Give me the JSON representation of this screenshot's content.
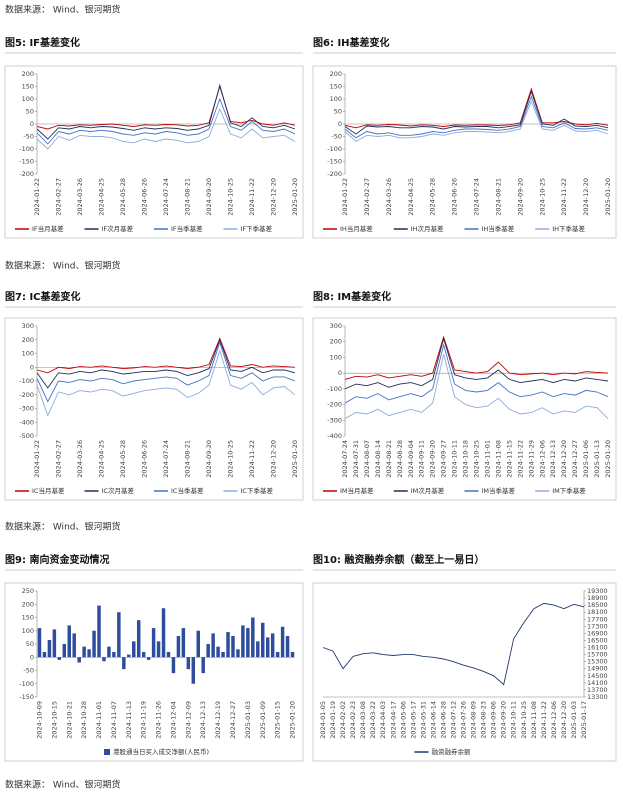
{
  "sources": [
    "数据来源： Wind、银河期货",
    "数据来源： Wind、银河期货",
    "数据来源： Wind、银河期货",
    "数据来源： Wind、银河期货"
  ],
  "chart_data": [
    {
      "type": "line",
      "title": "图5: IF基差变化",
      "categories": [
        "2024-01-22",
        null,
        "2024-02-27",
        null,
        "2024-03-26",
        null,
        "2024-04-25",
        null,
        "2024-05-28",
        null,
        "2024-06-26",
        null,
        "2024-07-24",
        null,
        "2024-08-21",
        null,
        "2024-09-20",
        null,
        "2024-10-25",
        null,
        "2024-11-22",
        null,
        "2024-12-20",
        null,
        "2025-01-20"
      ],
      "series": [
        {
          "name": "IF当月基差",
          "color": "#c00000",
          "values": [
            -10,
            -20,
            -5,
            -8,
            -3,
            -5,
            -2,
            0,
            -5,
            -10,
            -3,
            -5,
            -2,
            -3,
            -8,
            -5,
            5,
            150,
            10,
            5,
            15,
            0,
            -5,
            5,
            -5
          ]
        },
        {
          "name": "IF次月基差",
          "color": "#1f2d5a",
          "values": [
            -20,
            -60,
            -15,
            -20,
            -10,
            -15,
            -10,
            -12,
            -18,
            -25,
            -15,
            -20,
            -15,
            -18,
            -25,
            -20,
            -5,
            155,
            5,
            -10,
            25,
            -10,
            -15,
            -5,
            -20
          ]
        },
        {
          "name": "IF当季基差",
          "color": "#4472c4",
          "values": [
            -35,
            -80,
            -30,
            -40,
            -25,
            -30,
            -25,
            -30,
            -40,
            -45,
            -35,
            -40,
            -30,
            -35,
            -45,
            -40,
            -20,
            100,
            -10,
            -25,
            10,
            -25,
            -30,
            -20,
            -40
          ]
        },
        {
          "name": "IF下季基差",
          "color": "#8faadc",
          "values": [
            -60,
            -100,
            -50,
            -65,
            -45,
            -50,
            -50,
            -55,
            -70,
            -75,
            -60,
            -70,
            -60,
            -65,
            -75,
            -70,
            -50,
            60,
            -40,
            -55,
            -20,
            -55,
            -50,
            -45,
            -70
          ]
        }
      ],
      "ylim": [
        -200,
        200
      ],
      "yticks": [
        -200,
        -150,
        -100,
        -50,
        0,
        50,
        100,
        150,
        200
      ]
    },
    {
      "type": "line",
      "title": "图6: IH基差变化",
      "categories": [
        "2024-01-22",
        null,
        "2024-02-27",
        null,
        "2024-03-26",
        null,
        "2024-04-25",
        null,
        "2024-05-28",
        null,
        "2024-06-26",
        null,
        "2024-07-24",
        null,
        "2024-08-21",
        null,
        "2024-09-20",
        null,
        "2024-10-25",
        null,
        "2024-11-22",
        null,
        "2024-12-20",
        null,
        "2025-01-20"
      ],
      "series": [
        {
          "name": "IH当月基差",
          "color": "#c00000",
          "values": [
            -5,
            -15,
            -3,
            -5,
            -2,
            -4,
            -8,
            -3,
            -5,
            -10,
            -4,
            -5,
            -3,
            -4,
            -6,
            -3,
            5,
            140,
            5,
            5,
            10,
            0,
            -3,
            3,
            -5
          ]
        },
        {
          "name": "IH次月基差",
          "color": "#1f2d5a",
          "values": [
            -10,
            -40,
            -8,
            -12,
            -10,
            -15,
            -15,
            -10,
            -12,
            -20,
            -10,
            -12,
            -10,
            -10,
            -15,
            -10,
            -3,
            130,
            0,
            -5,
            20,
            -8,
            -10,
            -5,
            -15
          ]
        },
        {
          "name": "IH当季基差",
          "color": "#4472c4",
          "values": [
            -20,
            -55,
            -30,
            -40,
            -35,
            -45,
            -45,
            -40,
            -30,
            -35,
            -25,
            -20,
            -20,
            -22,
            -25,
            -20,
            -10,
            110,
            -10,
            -15,
            5,
            -18,
            -20,
            -15,
            -25
          ]
        },
        {
          "name": "IH下季基差",
          "color": "#8faadc",
          "values": [
            -30,
            -70,
            -45,
            -50,
            -45,
            -55,
            -55,
            -50,
            -40,
            -45,
            -35,
            -30,
            -30,
            -32,
            -35,
            -30,
            -20,
            90,
            -20,
            -25,
            -5,
            -28,
            -30,
            -25,
            -40
          ]
        }
      ],
      "ylim": [
        -200,
        200
      ],
      "yticks": [
        -200,
        -150,
        -100,
        -50,
        0,
        50,
        100,
        150,
        200
      ]
    },
    {
      "type": "line",
      "title": "图7: IC基差变化",
      "categories": [
        "2024-01-22",
        null,
        "2024-02-27",
        null,
        "2024-03-26",
        null,
        "2024-04-25",
        null,
        "2024-05-28",
        null,
        "2024-06-26",
        null,
        "2024-07-24",
        null,
        "2024-08-21",
        null,
        "2024-09-20",
        null,
        "2024-10-25",
        null,
        "2024-11-22",
        null,
        "2024-12-20",
        null,
        "2025-01-20"
      ],
      "series": [
        {
          "name": "IC当月基差",
          "color": "#c00000",
          "values": [
            -20,
            -40,
            0,
            -10,
            5,
            0,
            10,
            0,
            -10,
            -5,
            5,
            0,
            10,
            0,
            -10,
            0,
            20,
            210,
            10,
            5,
            20,
            0,
            10,
            5,
            0
          ]
        },
        {
          "name": "IC次月基差",
          "color": "#1f2d5a",
          "values": [
            -40,
            -150,
            -40,
            -50,
            -30,
            -40,
            -20,
            -30,
            -50,
            -40,
            -30,
            -30,
            -20,
            -30,
            -60,
            -40,
            -10,
            200,
            -20,
            -30,
            0,
            -40,
            -20,
            -20,
            -40
          ]
        },
        {
          "name": "IC当季基差",
          "color": "#4472c4",
          "values": [
            -80,
            -250,
            -100,
            -110,
            -90,
            -100,
            -80,
            -90,
            -120,
            -100,
            -90,
            -80,
            -70,
            -80,
            -130,
            -100,
            -60,
            180,
            -60,
            -80,
            -40,
            -100,
            -70,
            -70,
            -100
          ]
        },
        {
          "name": "IC下季基差",
          "color": "#8faadc",
          "values": [
            -130,
            -350,
            -180,
            -200,
            -170,
            -180,
            -160,
            -170,
            -210,
            -190,
            -170,
            -160,
            -150,
            -160,
            -220,
            -190,
            -130,
            120,
            -130,
            -160,
            -110,
            -200,
            -150,
            -140,
            -200
          ]
        }
      ],
      "ylim": [
        -500,
        300
      ],
      "yticks": [
        -500,
        -400,
        -300,
        -200,
        -100,
        0,
        100,
        200,
        300
      ]
    },
    {
      "type": "line",
      "title": "图8: IM基差变化",
      "categories": [
        "2024-07-24",
        "2024-07-31",
        "2024-08-07",
        "2024-08-14",
        "2024-08-21",
        "2024-08-28",
        "2024-09-04",
        "2024-09-11",
        "2024-09-20",
        "2024-09-27",
        "2024-10-11",
        "2024-10-18",
        "2024-10-25",
        "2024-11-01",
        "2024-11-08",
        "2024-11-15",
        "2024-11-22",
        "2024-11-29",
        "2024-12-06",
        "2024-12-13",
        "2024-12-20",
        "2024-12-27",
        "2025-01-06",
        "2025-01-13",
        "2025-01-20"
      ],
      "series": [
        {
          "name": "IM当月基差",
          "color": "#c00000",
          "values": [
            -40,
            -20,
            -25,
            -10,
            -30,
            -20,
            -10,
            -20,
            0,
            230,
            20,
            10,
            0,
            10,
            70,
            0,
            -10,
            -5,
            0,
            -10,
            0,
            -5,
            10,
            5,
            0
          ]
        },
        {
          "name": "IM次月基差",
          "color": "#1f2d5a",
          "values": [
            -100,
            -70,
            -80,
            -60,
            -90,
            -70,
            -60,
            -80,
            -40,
            220,
            -10,
            -30,
            -40,
            -30,
            20,
            -40,
            -60,
            -50,
            -40,
            -60,
            -40,
            -50,
            -30,
            -40,
            -50
          ]
        },
        {
          "name": "IM当季基差",
          "color": "#4472c4",
          "values": [
            -190,
            -150,
            -160,
            -130,
            -170,
            -150,
            -130,
            -150,
            -100,
            180,
            -70,
            -110,
            -120,
            -110,
            -60,
            -120,
            -150,
            -140,
            -120,
            -150,
            -130,
            -140,
            -110,
            -120,
            -150
          ]
        },
        {
          "name": "IM下季基差",
          "color": "#8faadc",
          "values": [
            -290,
            -250,
            -260,
            -230,
            -270,
            -250,
            -230,
            -250,
            -190,
            120,
            -150,
            -200,
            -220,
            -210,
            -160,
            -230,
            -260,
            -250,
            -220,
            -260,
            -240,
            -250,
            -210,
            -220,
            -290
          ]
        }
      ],
      "ylim": [
        -400,
        300
      ],
      "yticks": [
        -400,
        -300,
        -200,
        -100,
        0,
        100,
        200,
        300
      ]
    },
    {
      "type": "bar",
      "title": "图9: 南向资金变动情况",
      "categories": [
        "2024-10-09",
        null,
        null,
        "2024-10-15",
        null,
        null,
        "2024-10-21",
        null,
        null,
        "2024-10-28",
        null,
        null,
        "2024-11-01",
        null,
        null,
        "2024-11-07",
        null,
        null,
        "2024-11-13",
        null,
        null,
        "2024-11-19",
        null,
        null,
        "2024-11-26",
        null,
        null,
        "2024-12-04",
        null,
        null,
        "2024-12-09",
        null,
        null,
        "2024-12-13",
        null,
        null,
        "2024-12-19",
        null,
        null,
        "2024-12-27",
        null,
        null,
        "2025-01-03",
        null,
        null,
        "2025-01-09",
        null,
        null,
        "2025-01-15",
        null,
        null,
        "2025-01-20"
      ],
      "series": [
        {
          "name": "港股通当日买入成交净额(人民币)",
          "color": "#2e4d9c",
          "values": [
            110,
            20,
            65,
            105,
            -10,
            50,
            120,
            90,
            -20,
            40,
            30,
            100,
            195,
            -15,
            40,
            20,
            170,
            -45,
            10,
            60,
            140,
            20,
            -10,
            110,
            60,
            185,
            20,
            -60,
            80,
            110,
            -45,
            -100,
            100,
            -60,
            50,
            90,
            40,
            20,
            95,
            80,
            30,
            120,
            110,
            150,
            60,
            130,
            75,
            90,
            20,
            115,
            80,
            20
          ]
        }
      ],
      "ylim": [
        -150,
        250
      ],
      "yticks": [
        -150,
        -100,
        -50,
        0,
        50,
        100,
        150,
        200,
        250
      ]
    },
    {
      "type": "line",
      "title": "图10: 融资融券余额（截至上一易日）",
      "y_axis_side": "right",
      "categories": [
        "2024-01-05",
        "2024-01-19",
        "2024-02-02",
        "2024-02-23",
        "2024-03-08",
        "2024-03-22",
        "2024-04-03",
        "2024-04-17",
        "2024-05-06",
        "2024-05-17",
        "2024-05-31",
        "2024-06-14",
        "2024-06-28",
        "2024-07-12",
        "2024-07-26",
        "2024-08-09",
        "2024-08-23",
        "2024-09-06",
        "2024-09-20",
        "2024-10-11",
        "2024-10-25",
        "2024-11-08",
        "2024-11-22",
        "2024-12-06",
        "2024-12-20",
        "2025-01-03",
        "2025-01-17"
      ],
      "series": [
        {
          "name": "融资融券余额",
          "color": "#1f3a6e",
          "values": [
            16100,
            15900,
            14900,
            15600,
            15750,
            15800,
            15700,
            15650,
            15700,
            15700,
            15600,
            15550,
            15450,
            15300,
            15100,
            14950,
            14750,
            14500,
            14000,
            16600,
            17500,
            18300,
            18600,
            18500,
            18300,
            18550,
            18400
          ]
        }
      ],
      "ylim": [
        13300,
        19300
      ],
      "yticks": [
        13300,
        13700,
        14100,
        14500,
        14900,
        15300,
        15700,
        16100,
        16500,
        16900,
        17300,
        17700,
        18100,
        18500,
        18900,
        19300
      ]
    }
  ]
}
